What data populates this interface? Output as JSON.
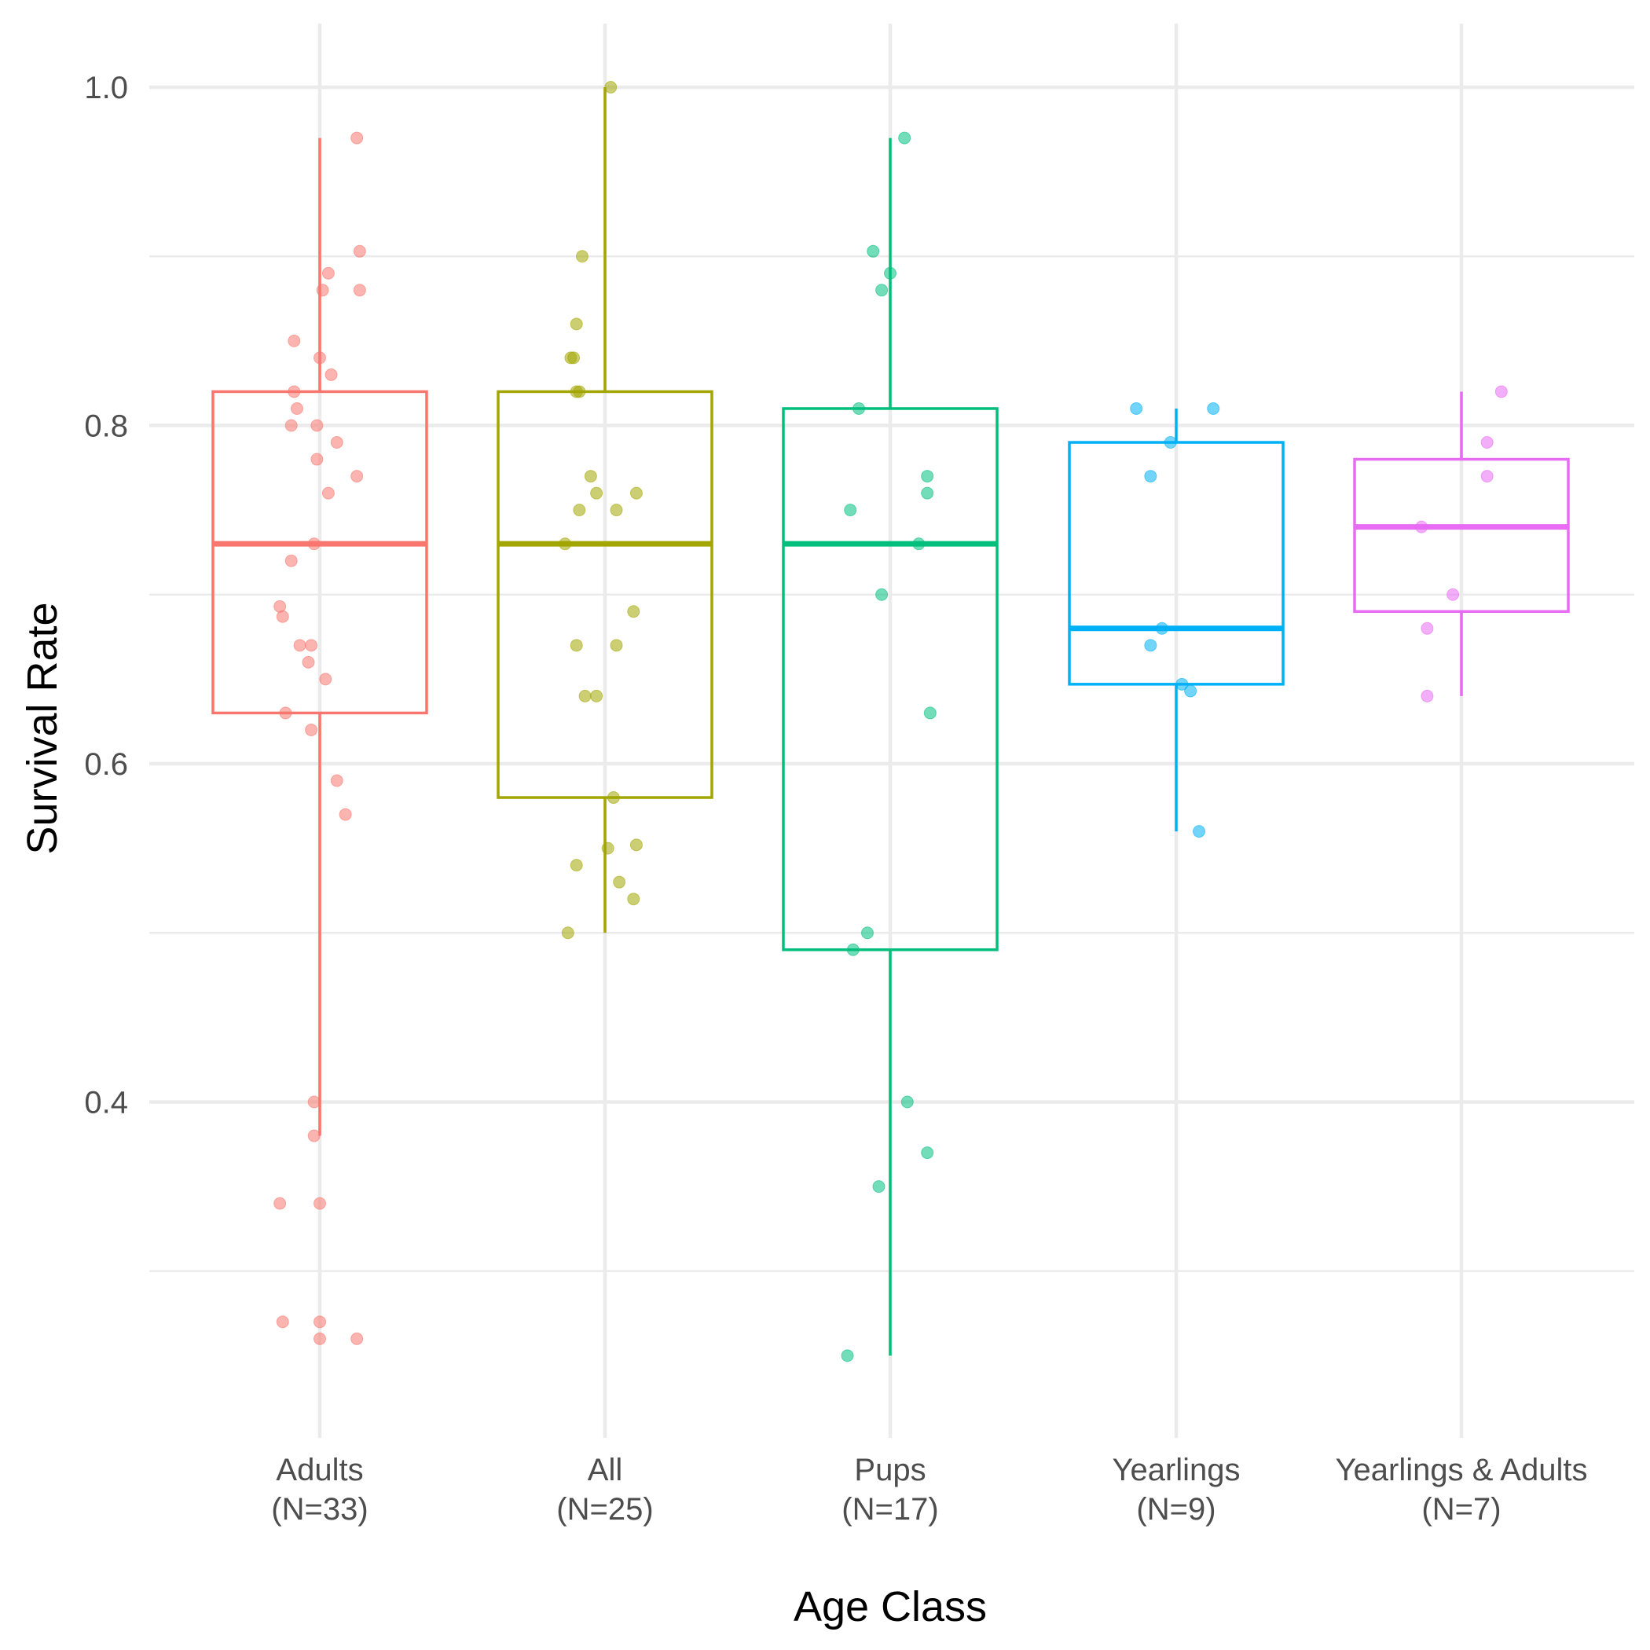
{
  "chart_data": {
    "type": "box",
    "xlabel": "Age Class",
    "ylabel": "Survival Rate",
    "ylim": [
      0.24,
      1.04
    ],
    "y_ticks": [
      0.4,
      0.6,
      0.8,
      1.0
    ],
    "y_tick_labels": [
      "0.4",
      "0.6",
      "0.8",
      "1.0"
    ],
    "y_minor_ticks": [
      0.3,
      0.5,
      0.7,
      0.9
    ],
    "grid": true,
    "legend": "none",
    "groups": [
      {
        "name": "Adults",
        "n_label": "(N=33)",
        "color": "#F8766D",
        "box": {
          "whisker_low": 0.38,
          "q1": 0.63,
          "median": 0.73,
          "q3": 0.82,
          "whisker_high": 0.97
        },
        "points": [
          {
            "dx": 0.13,
            "y": 0.97
          },
          {
            "dx": 0.14,
            "y": 0.903
          },
          {
            "dx": 0.03,
            "y": 0.89
          },
          {
            "dx": 0.01,
            "y": 0.88
          },
          {
            "dx": 0.14,
            "y": 0.88
          },
          {
            "dx": -0.09,
            "y": 0.85
          },
          {
            "dx": 0.0,
            "y": 0.84
          },
          {
            "dx": 0.04,
            "y": 0.83
          },
          {
            "dx": -0.09,
            "y": 0.82
          },
          {
            "dx": -0.08,
            "y": 0.81
          },
          {
            "dx": -0.1,
            "y": 0.8
          },
          {
            "dx": -0.01,
            "y": 0.8
          },
          {
            "dx": 0.06,
            "y": 0.79
          },
          {
            "dx": -0.01,
            "y": 0.78
          },
          {
            "dx": 0.13,
            "y": 0.77
          },
          {
            "dx": 0.03,
            "y": 0.76
          },
          {
            "dx": -0.02,
            "y": 0.73
          },
          {
            "dx": -0.1,
            "y": 0.72
          },
          {
            "dx": -0.14,
            "y": 0.693
          },
          {
            "dx": -0.13,
            "y": 0.687
          },
          {
            "dx": -0.07,
            "y": 0.67
          },
          {
            "dx": -0.03,
            "y": 0.67
          },
          {
            "dx": -0.04,
            "y": 0.66
          },
          {
            "dx": 0.02,
            "y": 0.65
          },
          {
            "dx": -0.12,
            "y": 0.63
          },
          {
            "dx": -0.03,
            "y": 0.62
          },
          {
            "dx": 0.06,
            "y": 0.59
          },
          {
            "dx": 0.09,
            "y": 0.57
          },
          {
            "dx": -0.02,
            "y": 0.4
          },
          {
            "dx": -0.02,
            "y": 0.38
          },
          {
            "dx": -0.14,
            "y": 0.34
          },
          {
            "dx": 0.0,
            "y": 0.34
          },
          {
            "dx": -0.13,
            "y": 0.27
          },
          {
            "dx": 0.0,
            "y": 0.27
          },
          {
            "dx": 0.0,
            "y": 0.26
          },
          {
            "dx": 0.13,
            "y": 0.26
          }
        ]
      },
      {
        "name": "All",
        "n_label": "(N=25)",
        "color": "#A3A500",
        "box": {
          "whisker_low": 0.5,
          "q1": 0.58,
          "median": 0.73,
          "q3": 0.82,
          "whisker_high": 1.0
        },
        "points": [
          {
            "dx": 0.02,
            "y": 1.0
          },
          {
            "dx": -0.08,
            "y": 0.9
          },
          {
            "dx": -0.1,
            "y": 0.86
          },
          {
            "dx": -0.12,
            "y": 0.84
          },
          {
            "dx": -0.11,
            "y": 0.84
          },
          {
            "dx": -0.1,
            "y": 0.82
          },
          {
            "dx": -0.09,
            "y": 0.82
          },
          {
            "dx": -0.05,
            "y": 0.77
          },
          {
            "dx": -0.03,
            "y": 0.76
          },
          {
            "dx": 0.11,
            "y": 0.76
          },
          {
            "dx": -0.09,
            "y": 0.75
          },
          {
            "dx": 0.04,
            "y": 0.75
          },
          {
            "dx": -0.14,
            "y": 0.73
          },
          {
            "dx": 0.1,
            "y": 0.69
          },
          {
            "dx": -0.1,
            "y": 0.67
          },
          {
            "dx": 0.04,
            "y": 0.67
          },
          {
            "dx": -0.07,
            "y": 0.64
          },
          {
            "dx": -0.03,
            "y": 0.64
          },
          {
            "dx": 0.03,
            "y": 0.58
          },
          {
            "dx": 0.11,
            "y": 0.552
          },
          {
            "dx": 0.01,
            "y": 0.55
          },
          {
            "dx": -0.1,
            "y": 0.54
          },
          {
            "dx": 0.05,
            "y": 0.53
          },
          {
            "dx": 0.1,
            "y": 0.52
          },
          {
            "dx": -0.13,
            "y": 0.5
          }
        ]
      },
      {
        "name": "Pups",
        "n_label": "(N=17)",
        "color": "#00BF7D",
        "box": {
          "whisker_low": 0.25,
          "q1": 0.49,
          "median": 0.73,
          "q3": 0.81,
          "whisker_high": 0.97
        },
        "points": [
          {
            "dx": 0.05,
            "y": 0.97
          },
          {
            "dx": -0.06,
            "y": 0.903
          },
          {
            "dx": 0.0,
            "y": 0.89
          },
          {
            "dx": -0.03,
            "y": 0.88
          },
          {
            "dx": -0.11,
            "y": 0.81
          },
          {
            "dx": 0.13,
            "y": 0.77
          },
          {
            "dx": 0.13,
            "y": 0.76
          },
          {
            "dx": -0.14,
            "y": 0.75
          },
          {
            "dx": 0.1,
            "y": 0.73
          },
          {
            "dx": -0.03,
            "y": 0.7
          },
          {
            "dx": 0.14,
            "y": 0.63
          },
          {
            "dx": -0.08,
            "y": 0.5
          },
          {
            "dx": -0.13,
            "y": 0.49
          },
          {
            "dx": 0.06,
            "y": 0.4
          },
          {
            "dx": 0.13,
            "y": 0.37
          },
          {
            "dx": -0.04,
            "y": 0.35
          },
          {
            "dx": -0.15,
            "y": 0.25
          }
        ]
      },
      {
        "name": "Yearlings",
        "n_label": "(N=9)",
        "color": "#00B0F6",
        "box": {
          "whisker_low": 0.56,
          "q1": 0.647,
          "median": 0.68,
          "q3": 0.79,
          "whisker_high": 0.81
        },
        "points": [
          {
            "dx": -0.14,
            "y": 0.81
          },
          {
            "dx": 0.13,
            "y": 0.81
          },
          {
            "dx": -0.02,
            "y": 0.79
          },
          {
            "dx": -0.09,
            "y": 0.77
          },
          {
            "dx": -0.05,
            "y": 0.68
          },
          {
            "dx": -0.09,
            "y": 0.67
          },
          {
            "dx": 0.02,
            "y": 0.647
          },
          {
            "dx": 0.05,
            "y": 0.643
          },
          {
            "dx": 0.08,
            "y": 0.56
          }
        ]
      },
      {
        "name": "Yearlings & Adults",
        "n_label": "(N=7)",
        "color": "#E76BF3",
        "box": {
          "whisker_low": 0.64,
          "q1": 0.69,
          "median": 0.74,
          "q3": 0.78,
          "whisker_high": 0.82
        },
        "points": [
          {
            "dx": 0.14,
            "y": 0.82
          },
          {
            "dx": 0.09,
            "y": 0.79
          },
          {
            "dx": 0.09,
            "y": 0.77
          },
          {
            "dx": -0.14,
            "y": 0.74
          },
          {
            "dx": -0.03,
            "y": 0.7
          },
          {
            "dx": -0.12,
            "y": 0.68
          },
          {
            "dx": -0.12,
            "y": 0.64
          }
        ]
      }
    ]
  }
}
